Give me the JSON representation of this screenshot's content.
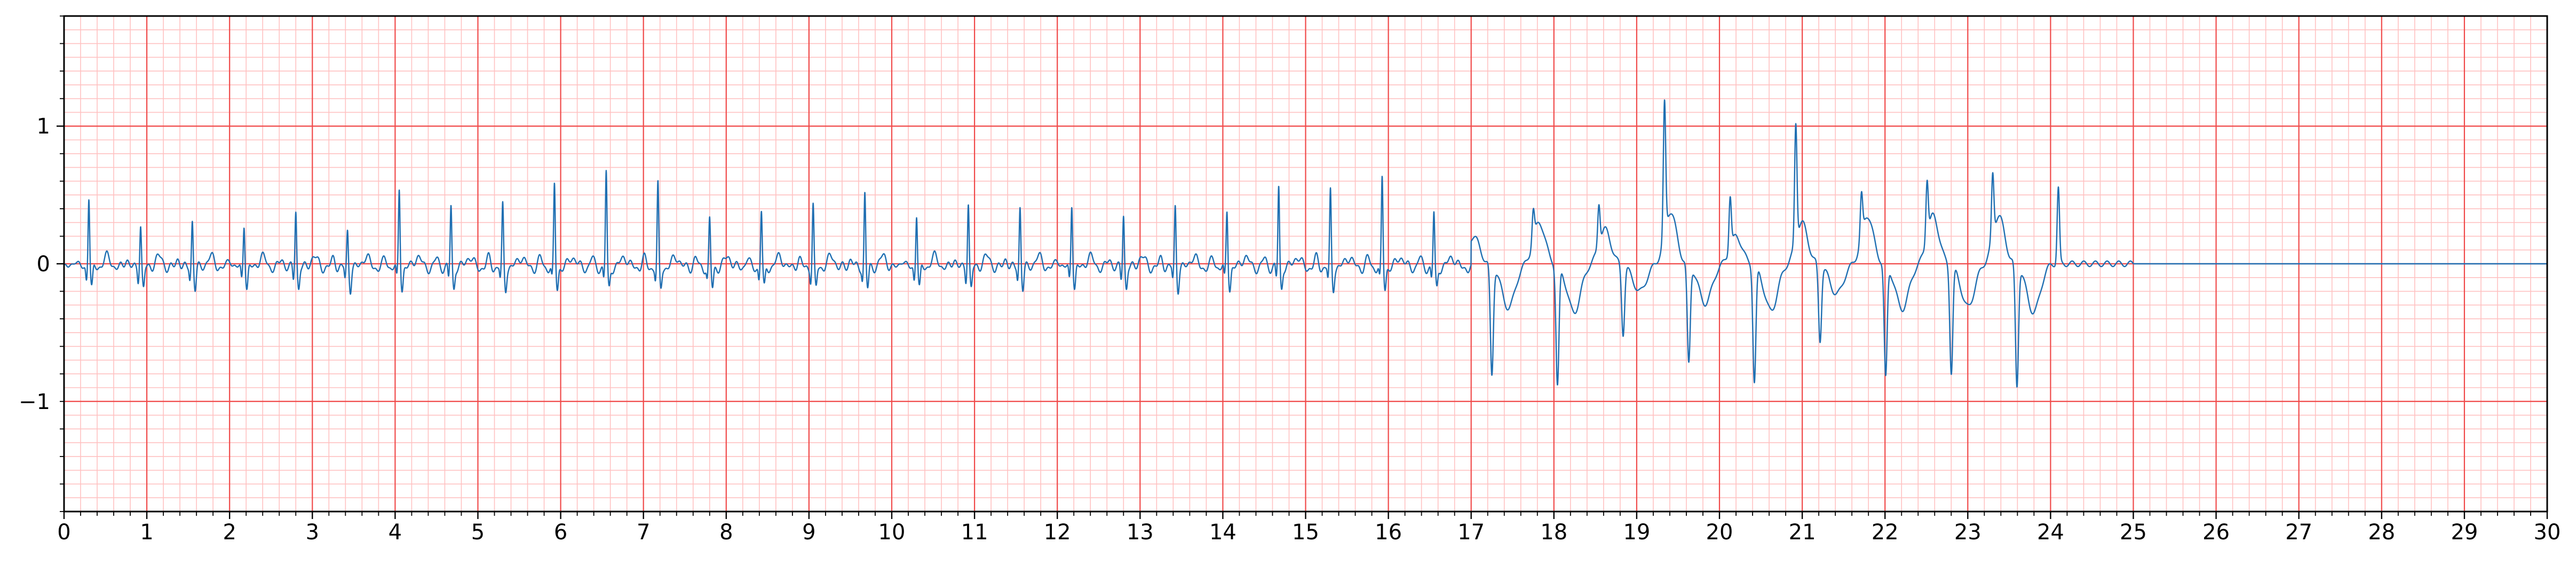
{
  "chart_data": {
    "type": "line",
    "title": "",
    "xlabel": "",
    "ylabel": "",
    "xlim": [
      0,
      30
    ],
    "ylim": [
      -1.8,
      1.8
    ],
    "x_ticks": [
      0,
      1,
      2,
      3,
      4,
      5,
      6,
      7,
      8,
      9,
      10,
      11,
      12,
      13,
      14,
      15,
      16,
      17,
      18,
      19,
      20,
      21,
      22,
      23,
      24,
      25,
      26,
      27,
      28,
      29,
      30
    ],
    "x_tick_labels": [
      "0",
      "1",
      "2",
      "3",
      "4",
      "5",
      "6",
      "7",
      "8",
      "9",
      "10",
      "11",
      "12",
      "13",
      "14",
      "15",
      "16",
      "17",
      "18",
      "19",
      "20",
      "21",
      "22",
      "23",
      "24",
      "25",
      "26",
      "27",
      "28",
      "29",
      "30"
    ],
    "y_ticks": [
      -1,
      0,
      1
    ],
    "y_tick_labels": [
      "−1",
      "0",
      "1"
    ],
    "grid": {
      "major": true,
      "minor": true,
      "major_x_step": 1,
      "major_y_step": 1,
      "minor_x_step": 0.2,
      "minor_y_step": 0.1,
      "major_color": "#f04a4a",
      "minor_color": "#ffc1c1"
    },
    "trace_color": "#1f6fb2",
    "series": [
      {
        "name": "",
        "sample_rate_hz": 500,
        "duration_s": 25,
        "baseline_after_end": 0,
        "segments": [
          {
            "start": 0,
            "end": 17,
            "rr": 0.625,
            "first_beat": 0.3,
            "p_amp": 0.07,
            "q_amp": -0.08,
            "s_amp": -0.15,
            "t_amp": 0.08,
            "r_amp": [
              0.53,
              0.32,
              0.35,
              0.33,
              0.43,
              0.27,
              0.58,
              0.46,
              0.45,
              0.6,
              0.7,
              0.6,
              0.35,
              0.42,
              0.46,
              0.55,
              0.4,
              0.48,
              0.45,
              0.48,
              0.4,
              0.45,
              0.42,
              0.6,
              0.55,
              0.65,
              0.4
            ]
          },
          {
            "start": 17,
            "end": 25,
            "rr": 0.61,
            "first_beat": 17.25,
            "wide_complexes": true,
            "down_amp": [
              -0.8,
              -0.88,
              -0.5,
              -0.72,
              -0.85,
              -0.55,
              -0.82,
              -0.78,
              -0.88
            ],
            "up_amp": [
              0.22,
              0.3,
              0.95,
              0.38,
              0.85,
              0.3,
              0.42,
              0.45,
              0.55
            ],
            "t_amp": [
              0.2,
              0.3,
              0.25,
              0.38,
              0.2,
              0.3,
              0.35,
              0.35,
              0.35
            ]
          }
        ]
      }
    ]
  }
}
